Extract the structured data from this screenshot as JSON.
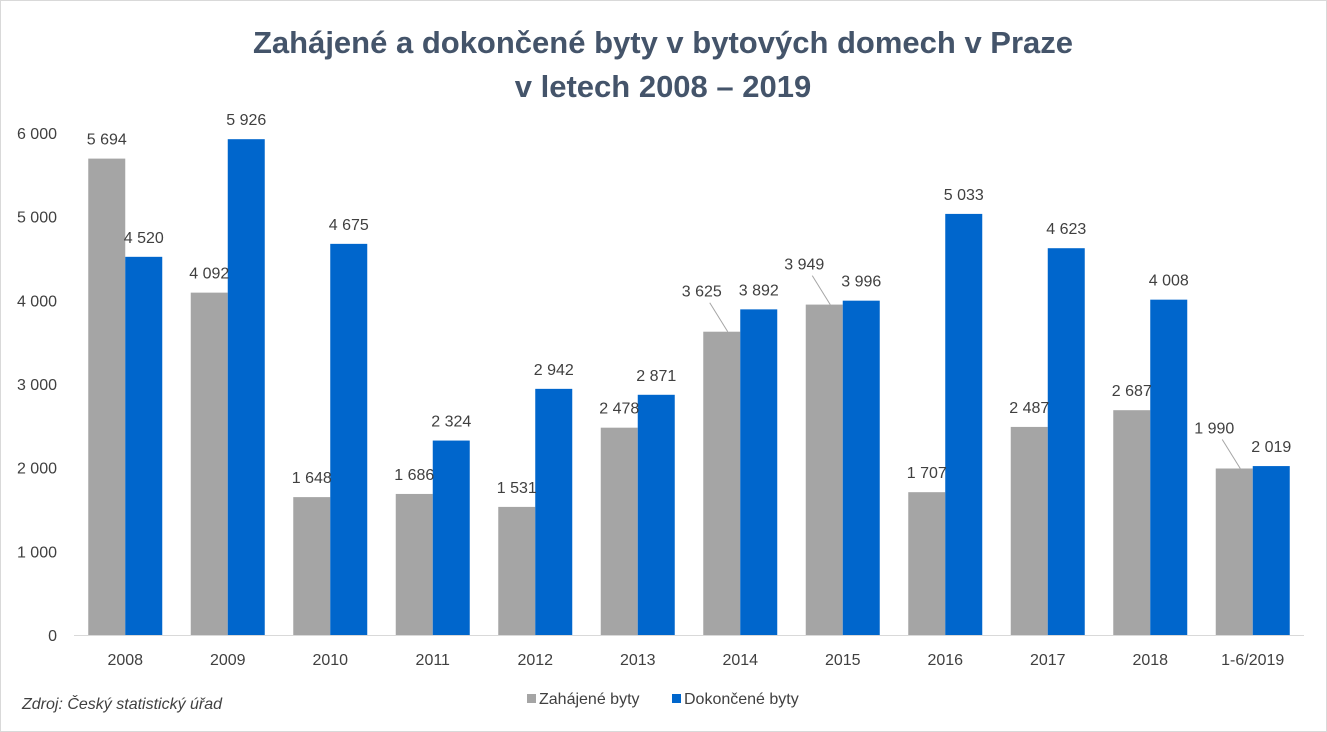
{
  "chart_data": {
    "type": "bar",
    "title_lines": [
      "Zahájené a dokončené byty v bytových domech v Praze",
      "v letech 2008 – 2019"
    ],
    "categories": [
      "2008",
      "2009",
      "2010",
      "2011",
      "2012",
      "2013",
      "2014",
      "2015",
      "2016",
      "2017",
      "2018",
      "1-6/2019"
    ],
    "series": [
      {
        "name": "Zahájené byty",
        "color": "#a5a5a5",
        "values": [
          5694,
          4092,
          1648,
          1686,
          1531,
          2478,
          3625,
          3949,
          1707,
          2487,
          2687,
          1990
        ],
        "labels": [
          "5 694",
          "4 092",
          "1 648",
          "1 686",
          "1 531",
          "2 478",
          "3 625",
          "3 949",
          "1 707",
          "2 487",
          "2 687",
          "1 990"
        ]
      },
      {
        "name": "Dokončené byty",
        "color": "#0066cc",
        "values": [
          4520,
          5926,
          4675,
          2324,
          2942,
          2871,
          3892,
          3996,
          5033,
          4623,
          4008,
          2019
        ],
        "labels": [
          "4 520",
          "5 926",
          "4 675",
          "2 324",
          "2 942",
          "2 871",
          "3 892",
          "3 996",
          "5 033",
          "4 623",
          "4 008",
          "2 019"
        ]
      }
    ],
    "ylim": [
      0,
      6000
    ],
    "yticks": [
      0,
      1000,
      2000,
      3000,
      4000,
      5000,
      6000
    ],
    "ytick_labels": [
      "0",
      "1 000",
      "2 000",
      "3 000",
      "4 000",
      "5 000",
      "6 000"
    ],
    "grid": false,
    "legend_position": "bottom"
  },
  "source_note": "Zdroj: Český statistický úřad"
}
